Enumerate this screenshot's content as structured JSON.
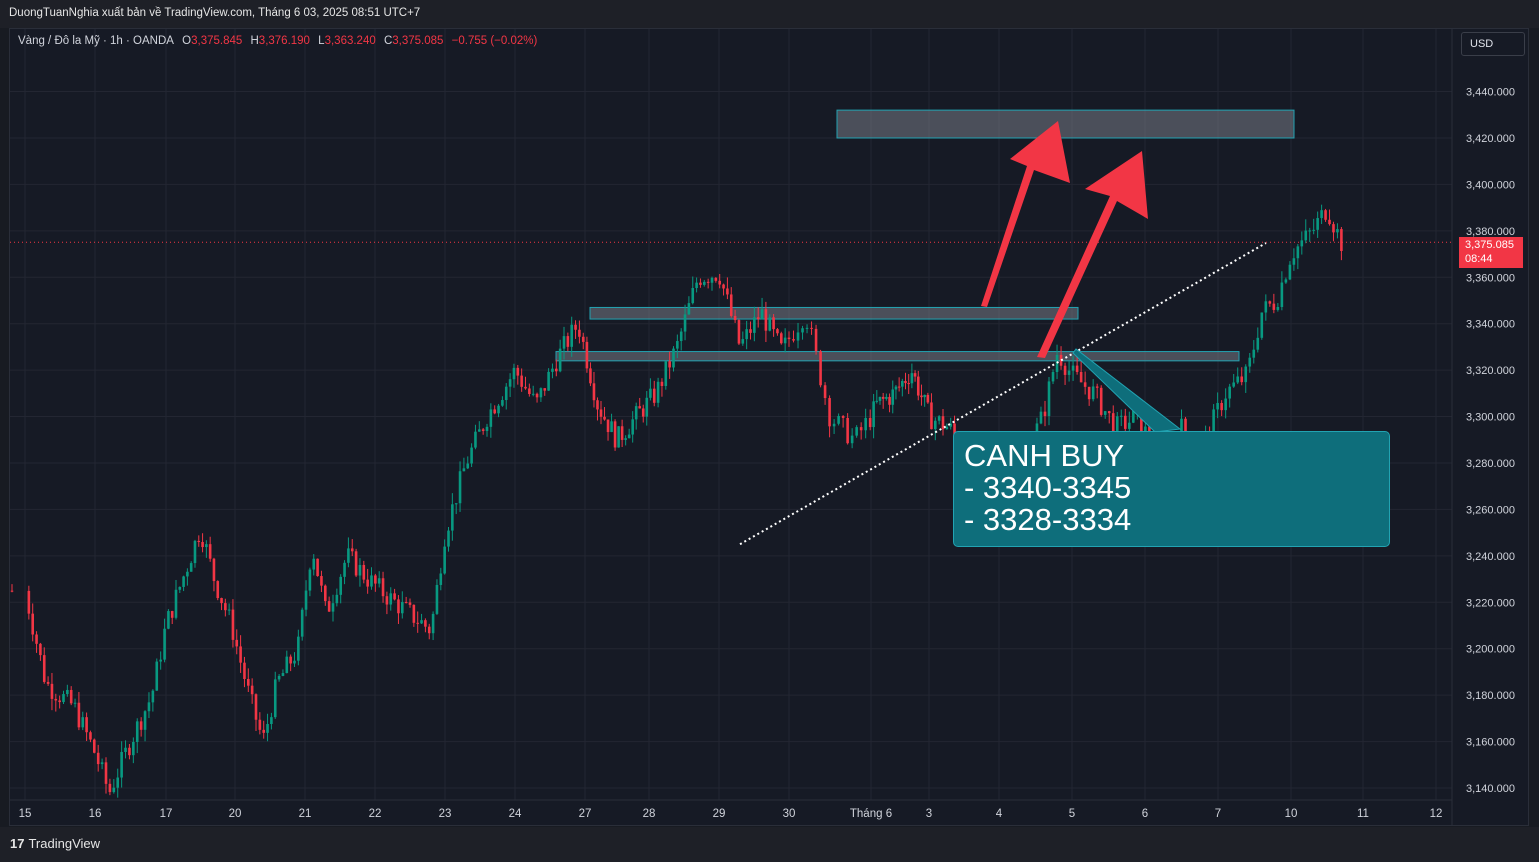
{
  "header": {
    "publisher_line": "DuongTuanNghia xuất bản về TradingView.com, Tháng 6 03, 2025 08:51 UTC+7"
  },
  "ohlc": {
    "symbol": "Vàng / Đô la Mỹ · 1h · OANDA",
    "o_label": "O",
    "o_value": "3,375.845",
    "h_label": "H",
    "h_value": "3,376.190",
    "l_label": "L",
    "l_value": "3,363.240",
    "c_label": "C",
    "c_value": "3,375.085",
    "change": "−0.755 (−0.02%)"
  },
  "currency_button": {
    "label": "USD"
  },
  "price_tag": {
    "price": "3,375.085",
    "countdown": "08:44"
  },
  "callout": {
    "line1": "CANH BUY",
    "line2": "- 3340-3345",
    "line3": "- 3328-3334"
  },
  "footer": {
    "logo_mark": "17",
    "brand": "TradingView"
  },
  "colors": {
    "background": "#161a25",
    "up": "#089981",
    "down": "#f23645",
    "zone": "#22a3b2",
    "arrow": "#f23645",
    "callout": "#0e6e7b"
  },
  "chart_data": {
    "type": "candlestick",
    "instrument": "Vàng / Đô la Mỹ",
    "timeframe": "1h",
    "ylim": [
      3130,
      3452
    ],
    "y_ticks": [
      "3,140.000",
      "3,160.000",
      "3,180.000",
      "3,200.000",
      "3,220.000",
      "3,240.000",
      "3,260.000",
      "3,280.000",
      "3,300.000",
      "3,320.000",
      "3,340.000",
      "3,360.000",
      "3,380.000",
      "3,400.000",
      "3,420.000",
      "3,440.000"
    ],
    "x_ticks": [
      "15",
      "16",
      "17",
      "20",
      "21",
      "22",
      "23",
      "24",
      "27",
      "28",
      "29",
      "30",
      "Tháng 6",
      "3",
      "4",
      "5",
      "6",
      "7",
      "10",
      "11",
      "12"
    ],
    "last_price": 3375.085,
    "price_path": [
      [
        0,
        3225
      ],
      [
        0.3,
        3185
      ],
      [
        0.7,
        3175
      ],
      [
        1.0,
        3155
      ],
      [
        1.2,
        3138
      ],
      [
        1.5,
        3160
      ],
      [
        1.8,
        3180
      ],
      [
        2.0,
        3210
      ],
      [
        2.3,
        3235
      ],
      [
        2.5,
        3252
      ],
      [
        2.7,
        3230
      ],
      [
        2.95,
        3210
      ],
      [
        3.2,
        3180
      ],
      [
        3.4,
        3160
      ],
      [
        3.6,
        3185
      ],
      [
        3.9,
        3200
      ],
      [
        4.1,
        3245
      ],
      [
        4.3,
        3215
      ],
      [
        4.6,
        3240
      ],
      [
        4.9,
        3230
      ],
      [
        5.2,
        3222
      ],
      [
        5.5,
        3215
      ],
      [
        5.8,
        3208
      ],
      [
        6.0,
        3250
      ],
      [
        6.3,
        3280
      ],
      [
        6.6,
        3300
      ],
      [
        7.0,
        3320
      ],
      [
        7.3,
        3305
      ],
      [
        7.6,
        3325
      ],
      [
        7.9,
        3340
      ],
      [
        8.2,
        3305
      ],
      [
        8.5,
        3290
      ],
      [
        8.8,
        3300
      ],
      [
        9.1,
        3310
      ],
      [
        9.4,
        3330
      ],
      [
        9.7,
        3360
      ],
      [
        10.0,
        3362
      ],
      [
        10.3,
        3330
      ],
      [
        10.6,
        3345
      ],
      [
        10.9,
        3328
      ],
      [
        11.2,
        3345
      ],
      [
        11.5,
        3300
      ],
      [
        11.8,
        3290
      ],
      [
        12.1,
        3305
      ],
      [
        12.4,
        3310
      ],
      [
        12.7,
        3320
      ],
      [
        13.0,
        3300
      ],
      [
        13.3,
        3295
      ],
      [
        13.6,
        3275
      ],
      [
        13.8,
        3255
      ],
      [
        14.0,
        3262
      ],
      [
        14.3,
        3280
      ],
      [
        14.6,
        3300
      ],
      [
        14.8,
        3328
      ],
      [
        15.0,
        3318
      ],
      [
        15.3,
        3310
      ],
      [
        15.6,
        3295
      ],
      [
        15.9,
        3300
      ],
      [
        16.2,
        3280
      ],
      [
        16.5,
        3295
      ],
      [
        16.8,
        3288
      ],
      [
        17.1,
        3310
      ],
      [
        17.4,
        3318
      ],
      [
        17.6,
        3345
      ],
      [
        17.8,
        3350
      ],
      [
        18.0,
        3370
      ],
      [
        18.3,
        3380
      ],
      [
        18.5,
        3390
      ],
      [
        18.7,
        3375
      ]
    ],
    "zones": [
      {
        "from": "2",
        "to": "10",
        "y_top": 3432,
        "y_bottom": 3420
      },
      {
        "from": "27",
        "to": "5",
        "y_top": 3347,
        "y_bottom": 3342
      },
      {
        "from": "27",
        "to": "7",
        "y_top": 3328,
        "y_bottom": 3324
      }
    ],
    "trendline": {
      "from_price": 3245,
      "to_price": 3375
    }
  }
}
